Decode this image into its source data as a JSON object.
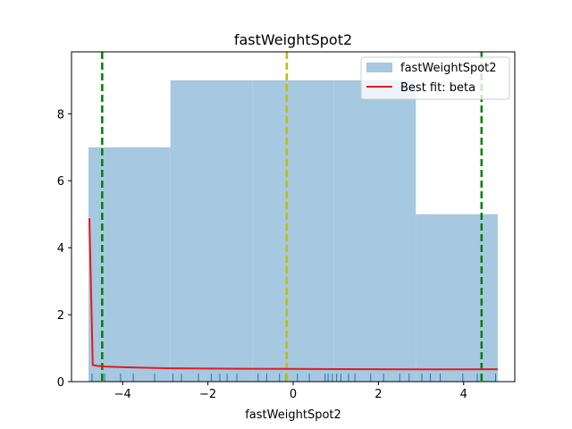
{
  "chart_data": {
    "type": "bar",
    "title": "fastWeightSpot2",
    "xlabel": "fastWeightSpot2",
    "ylabel": "",
    "xlim": [
      -5.2,
      5.2
    ],
    "ylim": [
      0,
      9.85
    ],
    "xticks": [
      -4,
      -2,
      0,
      2,
      4
    ],
    "yticks": [
      0,
      2,
      4,
      6,
      8
    ],
    "grid": false,
    "legend_placement": "top-right",
    "histogram": {
      "name": "fastWeightSpot2",
      "color": "#a6c8e0",
      "bins": [
        {
          "x0": -4.8,
          "x1": -2.88,
          "count": 7
        },
        {
          "x0": -2.88,
          "x1": -0.96,
          "count": 9
        },
        {
          "x0": -0.96,
          "x1": 0.96,
          "count": 9
        },
        {
          "x0": 0.96,
          "x1": 2.88,
          "count": 9
        },
        {
          "x0": 2.88,
          "x1": 4.8,
          "count": 5
        }
      ]
    },
    "fit_line": {
      "name": "Best fit: beta",
      "color": "#e41a1c",
      "x": [
        -4.78,
        -4.7,
        -4.6,
        -4.4,
        -4.0,
        -3.0,
        -2.0,
        -1.0,
        0.0,
        1.0,
        2.0,
        3.0,
        4.0,
        4.8
      ],
      "y": [
        4.88,
        0.5,
        0.47,
        0.45,
        0.43,
        0.4,
        0.39,
        0.385,
        0.38,
        0.375,
        0.37,
        0.368,
        0.365,
        0.37
      ]
    },
    "vlines": [
      {
        "x": -4.48,
        "color": "#008000",
        "style": "dashed"
      },
      {
        "x": -0.15,
        "color": "#bfbf00",
        "style": "dashed"
      },
      {
        "x": 4.42,
        "color": "#008000",
        "style": "dashed"
      }
    ],
    "rug": {
      "color": "#1f77b4",
      "x": [
        -4.72,
        -4.42,
        -4.05,
        -3.75,
        -3.25,
        -2.82,
        -2.62,
        -2.22,
        -1.92,
        -1.72,
        -1.55,
        -1.32,
        -0.82,
        -0.62,
        -0.32,
        -0.17,
        0.1,
        0.38,
        0.75,
        0.82,
        0.92,
        1.02,
        1.12,
        1.3,
        1.45,
        1.82,
        2.12,
        2.5,
        2.72,
        3.02,
        3.22,
        3.45,
        3.98,
        4.32,
        4.75
      ]
    }
  }
}
